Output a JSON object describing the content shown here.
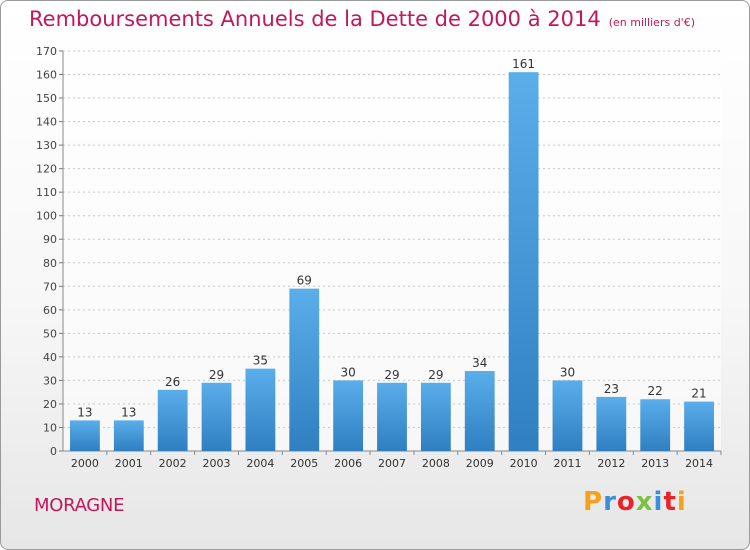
{
  "chart_data": {
    "type": "bar",
    "title": "Remboursements Annuels de la Dette de 2000 à 2014",
    "unit": "(en milliers d'€)",
    "categories": [
      "2000",
      "2001",
      "2002",
      "2003",
      "2004",
      "2005",
      "2006",
      "2007",
      "2008",
      "2009",
      "2010",
      "2011",
      "2012",
      "2013",
      "2014"
    ],
    "values": [
      13,
      13,
      26,
      29,
      35,
      69,
      30,
      29,
      29,
      34,
      161,
      30,
      23,
      22,
      21
    ],
    "ylim": [
      0,
      170
    ],
    "yticks": [
      0,
      10,
      20,
      30,
      40,
      50,
      60,
      70,
      80,
      90,
      100,
      110,
      120,
      130,
      140,
      150,
      160,
      170
    ],
    "grid": true,
    "bar_color": "#3a94d6"
  },
  "commune": "MORAGNE",
  "logo": {
    "text": "Proxiti",
    "colors": [
      "#f5a11c",
      "#3b8fd9",
      "#e8242b",
      "#7cc242",
      "#3b8fd9",
      "#e8242b",
      "#f5a11c"
    ]
  }
}
